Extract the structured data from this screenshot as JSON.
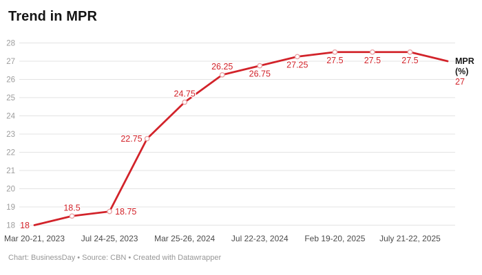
{
  "header": {
    "title": "Trend in MPR"
  },
  "footer": {
    "credit": "Chart: BusinessDay • Source: CBN • Created with Datawrapper"
  },
  "chart_data": {
    "type": "line",
    "title": "Trend in MPR",
    "ylabel": "MPR (%)",
    "ylim": [
      18,
      28
    ],
    "y_ticks": [
      18,
      19,
      20,
      21,
      22,
      23,
      24,
      25,
      26,
      27,
      28
    ],
    "grid": true,
    "legend_position": "end-of-line",
    "series": [
      {
        "name": "MPR (%)",
        "values": [
          18,
          18.5,
          18.75,
          22.75,
          24.75,
          26.25,
          26.75,
          27.25,
          27.5,
          27.5,
          27.5,
          27
        ]
      }
    ],
    "point_labels": [
      {
        "text": "18",
        "pos": "left"
      },
      {
        "text": "18.5",
        "pos": "above"
      },
      {
        "text": "18.75",
        "pos": "right"
      },
      {
        "text": "22.75",
        "pos": "left"
      },
      {
        "text": "24.75",
        "pos": "above"
      },
      {
        "text": "26.25",
        "pos": "above"
      },
      {
        "text": "26.75",
        "pos": "below"
      },
      {
        "text": "27.25",
        "pos": "below"
      },
      {
        "text": "27.5",
        "pos": "below"
      },
      {
        "text": "27.5",
        "pos": "below"
      },
      {
        "text": "27.5",
        "pos": "below"
      },
      {
        "text": "27",
        "pos": "end"
      }
    ],
    "markers": [
      false,
      true,
      true,
      true,
      true,
      true,
      true,
      true,
      true,
      true,
      true,
      false
    ],
    "x_tick_labels": [
      {
        "index": 0,
        "text": "Mar 20-21, 2023"
      },
      {
        "index": 2,
        "text": "Jul 24-25, 2023"
      },
      {
        "index": 4,
        "text": "Mar 25-26, 2024"
      },
      {
        "index": 6,
        "text": "Jul 22-23, 2024"
      },
      {
        "index": 8,
        "text": "Feb 19-20, 2025"
      },
      {
        "index": 10,
        "text": "July 21-22, 2025"
      }
    ],
    "end_label": {
      "line1": "MPR",
      "line2": "(%)",
      "value": "27"
    },
    "colors": {
      "line": "#d2232a",
      "value_label": "#d2232a",
      "marker_stroke": "#eaa2a5",
      "grid": "#e3e3e3",
      "y_tick": "#9c9c9c",
      "x_tick": "#4b4b4b",
      "end_label_text": "#1a1a1a",
      "background": "#ffffff"
    }
  }
}
